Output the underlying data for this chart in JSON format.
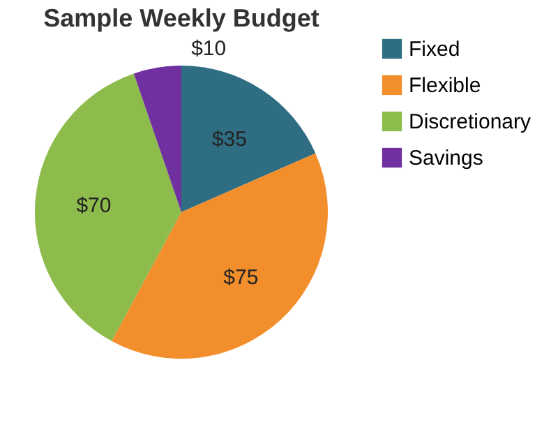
{
  "chart_data": {
    "type": "pie",
    "title": "Sample Weekly Budget",
    "categories": [
      "Fixed",
      "Flexible",
      "Discretionary",
      "Savings"
    ],
    "values": [
      35,
      75,
      70,
      10
    ],
    "colors": [
      "#2f6e82",
      "#f28e2b",
      "#8dbb4c",
      "#7030a0"
    ],
    "value_labels": [
      "$35",
      "$75",
      "$70",
      "$10"
    ],
    "legend": "right"
  }
}
